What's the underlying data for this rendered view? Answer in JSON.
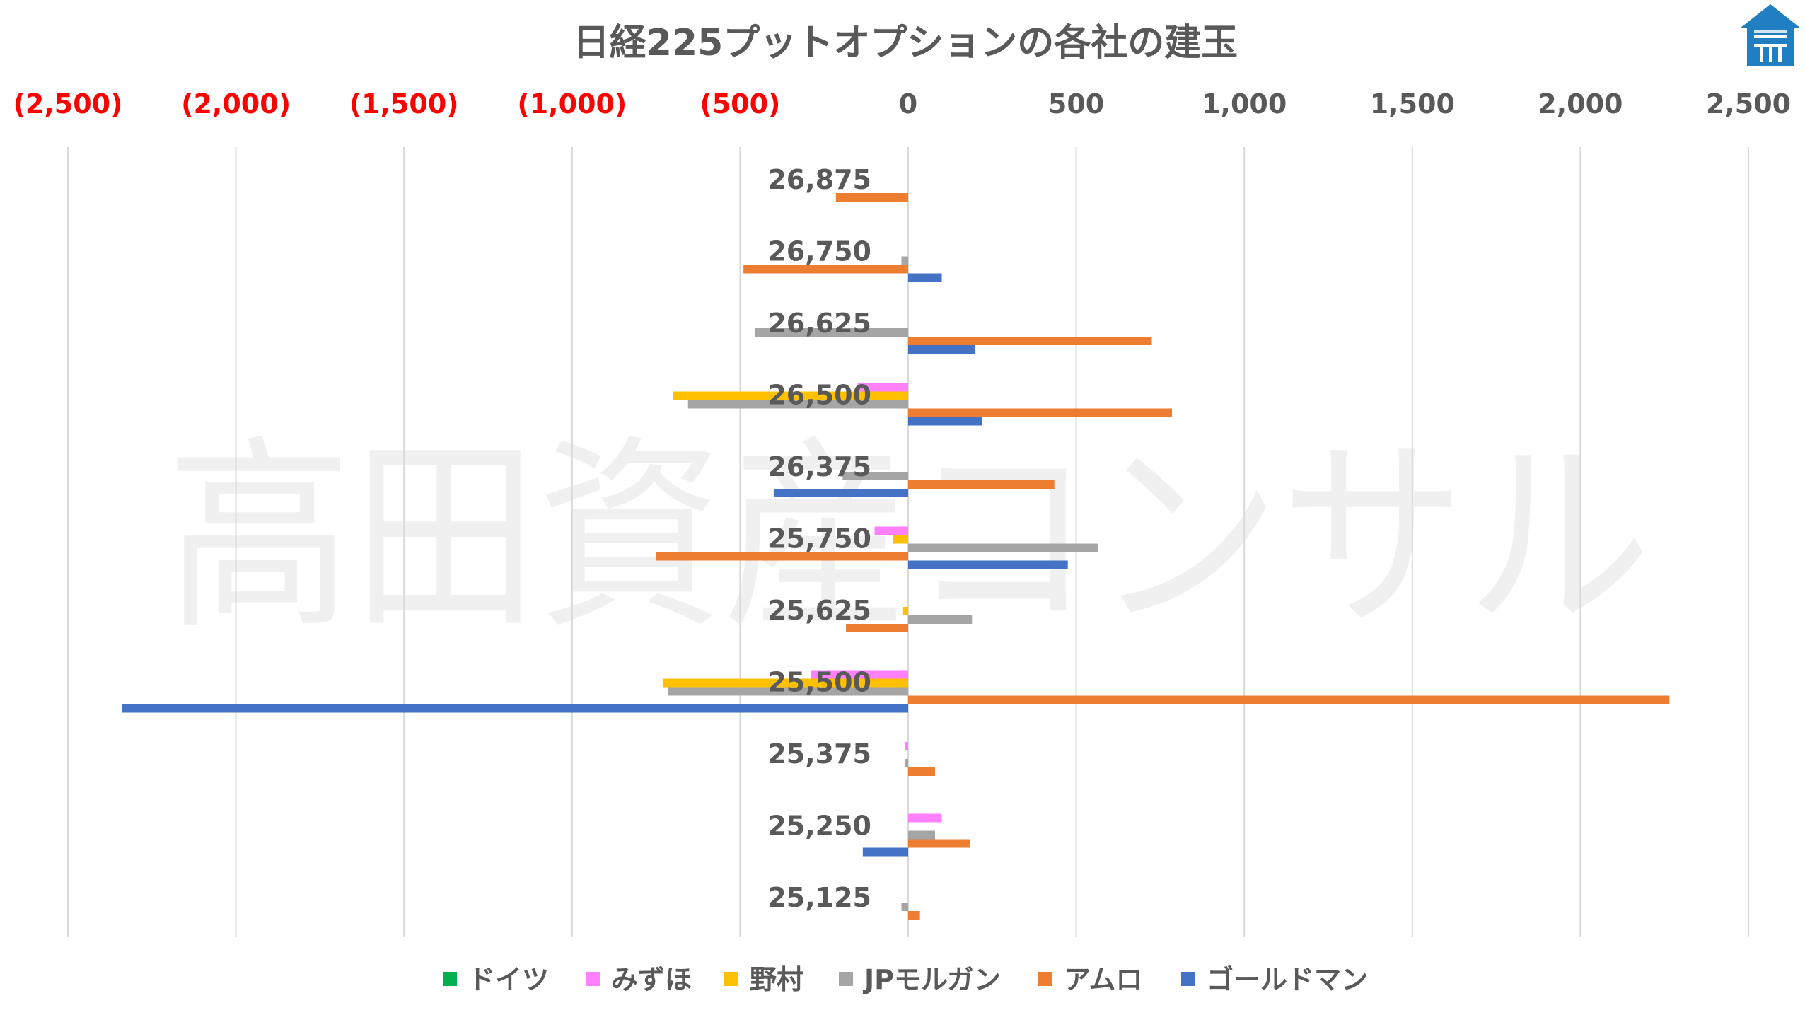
{
  "chart_data": {
    "type": "bar",
    "orientation": "horizontal",
    "title": "日経225プットオプションの各社の建玉",
    "watermark": "高田資産コンサル",
    "xlim": [
      -2500,
      2500
    ],
    "x_ticks": [
      -2500,
      -2000,
      -1500,
      -1000,
      -500,
      0,
      500,
      1000,
      1500,
      2000,
      2500
    ],
    "x_tick_labels": [
      "(2,500)",
      "(2,000)",
      "(1,500)",
      "(1,000)",
      "(500)",
      "0",
      "500",
      "1,000",
      "1,500",
      "2,000",
      "2,500"
    ],
    "negative_tick_color": "#ff0000",
    "positive_tick_color": "#595959",
    "grid": "vertical",
    "legend_position": "bottom",
    "categories": [
      "26,875",
      "26,750",
      "26,625",
      "26,500",
      "26,375",
      "25,750",
      "25,625",
      "25,500",
      "25,375",
      "25,250",
      "25,125"
    ],
    "series": [
      {
        "name": "ドイツ",
        "color": "#00b050",
        "values": [
          0,
          0,
          0,
          0,
          0,
          0,
          0,
          0,
          0,
          0,
          0
        ]
      },
      {
        "name": "みずほ",
        "color": "#ff80ff",
        "values": [
          0,
          0,
          0,
          -150,
          0,
          -100,
          0,
          -290,
          -10,
          100,
          0
        ]
      },
      {
        "name": "野村",
        "color": "#ffc000",
        "values": [
          0,
          0,
          0,
          -700,
          0,
          -45,
          -15,
          -730,
          0,
          0,
          0
        ]
      },
      {
        "name": "JPモルガン",
        "color": "#a5a5a5",
        "values": [
          0,
          -20,
          -455,
          -655,
          -195,
          565,
          190,
          -715,
          -10,
          80,
          -20
        ]
      },
      {
        "name": "アムロ",
        "color": "#ed7d31",
        "values": [
          -215,
          -490,
          725,
          785,
          435,
          -750,
          -185,
          2265,
          80,
          185,
          35
        ]
      },
      {
        "name": "ゴールドマン",
        "color": "#4472c4",
        "values": [
          0,
          100,
          200,
          220,
          -400,
          475,
          0,
          -2340,
          0,
          -135,
          0
        ]
      }
    ]
  },
  "logo": {
    "icon": "house-logo-icon",
    "color": "#1f7fc1"
  }
}
